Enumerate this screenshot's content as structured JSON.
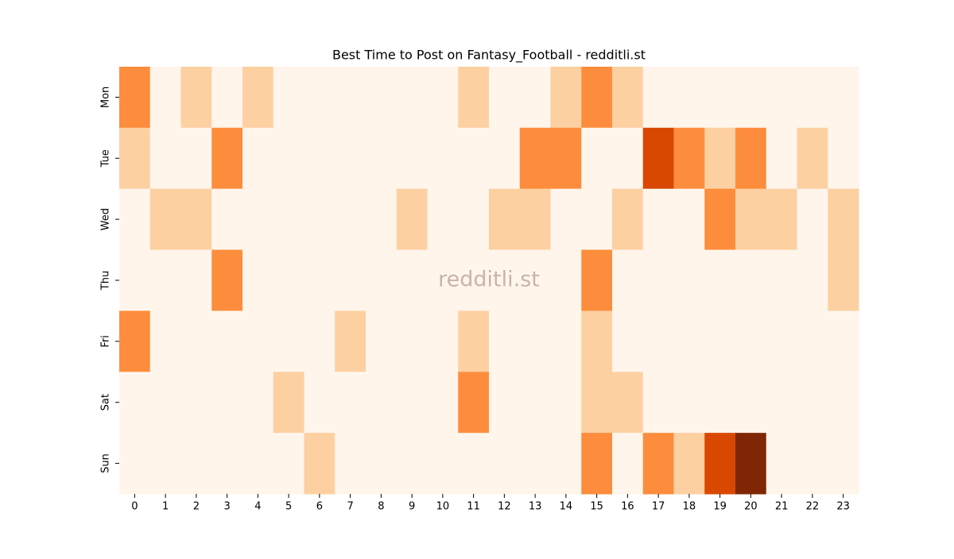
{
  "chart_data": {
    "type": "heatmap",
    "title": "Best Time to Post on Fantasy_Football - redditli.st",
    "watermark": "redditli.st",
    "x": [
      0,
      1,
      2,
      3,
      4,
      5,
      6,
      7,
      8,
      9,
      10,
      11,
      12,
      13,
      14,
      15,
      16,
      17,
      18,
      19,
      20,
      21,
      22,
      23
    ],
    "categories": [
      "Mon",
      "Tue",
      "Wed",
      "Thu",
      "Fri",
      "Sat",
      "Sun"
    ],
    "values": [
      [
        2,
        0,
        1,
        0,
        1,
        0,
        0,
        0,
        0,
        0,
        0,
        1,
        0,
        0,
        1,
        2,
        1,
        0,
        0,
        0,
        0,
        0,
        0,
        0
      ],
      [
        1,
        0,
        0,
        2,
        0,
        0,
        0,
        0,
        0,
        0,
        0,
        0,
        0,
        2,
        2,
        0,
        0,
        3,
        2,
        1,
        2,
        0,
        1,
        0
      ],
      [
        0,
        1,
        1,
        0,
        0,
        0,
        0,
        0,
        0,
        1,
        0,
        0,
        1,
        1,
        0,
        0,
        1,
        0,
        0,
        2,
        1,
        1,
        0,
        1
      ],
      [
        0,
        0,
        0,
        2,
        0,
        0,
        0,
        0,
        0,
        0,
        0,
        0,
        0,
        0,
        0,
        2,
        0,
        0,
        0,
        0,
        0,
        0,
        0,
        1
      ],
      [
        2,
        0,
        0,
        0,
        0,
        0,
        0,
        1,
        0,
        0,
        0,
        1,
        0,
        0,
        0,
        1,
        0,
        0,
        0,
        0,
        0,
        0,
        0,
        0
      ],
      [
        0,
        0,
        0,
        0,
        0,
        1,
        0,
        0,
        0,
        0,
        0,
        2,
        0,
        0,
        0,
        1,
        1,
        0,
        0,
        0,
        0,
        0,
        0,
        0
      ],
      [
        0,
        0,
        0,
        0,
        0,
        0,
        1,
        0,
        0,
        0,
        0,
        0,
        0,
        0,
        0,
        2,
        0,
        2,
        1,
        3,
        4,
        0,
        0,
        0
      ]
    ],
    "colors": [
      "#fff5eb",
      "#fdd0a2",
      "#fd8d3c",
      "#d94801",
      "#7f2704"
    ],
    "vlim": [
      0,
      4
    ]
  }
}
